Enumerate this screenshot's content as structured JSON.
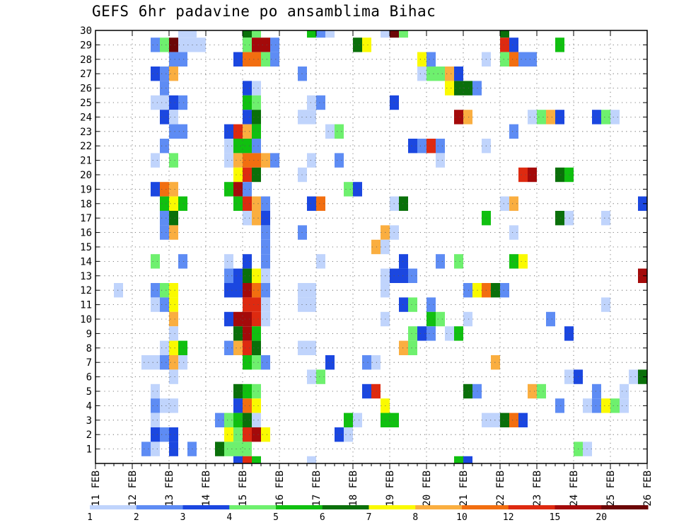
{
  "title": "GEFS 6hr padavine po ansamblima Bihac",
  "chart_data": {
    "type": "heatmap",
    "title": "GEFS 6hr padavine po ansamblima Bihac",
    "xlabel": "",
    "ylabel": "",
    "x_ticks": [
      "11 FEB",
      "12 FEB",
      "13 FEB",
      "14 FEB",
      "15 FEB",
      "16 FEB",
      "17 FEB",
      "18 FEB",
      "19 FEB",
      "20 FEB",
      "21 FEB",
      "22 FEB",
      "23 FEB",
      "24 FEB",
      "25 FEB",
      "26 FEB"
    ],
    "y_ticks": [
      "1",
      "2",
      "3",
      "4",
      "5",
      "6",
      "7",
      "8",
      "9",
      "10",
      "11",
      "12",
      "13",
      "14",
      "15",
      "16",
      "17",
      "18",
      "19",
      "20",
      "21",
      "22",
      "23",
      "24",
      "25",
      "26",
      "27",
      "28",
      "29",
      "30"
    ],
    "x_unit": "6-hour steps from 11 FEB 00Z",
    "x_range": [
      0,
      60
    ],
    "y_range": [
      0,
      30
    ],
    "grid": true,
    "colorbar": {
      "labels": [
        "1",
        "2",
        "3",
        "4",
        "5",
        "6",
        "7",
        "8",
        "10",
        "12",
        "15",
        "20"
      ],
      "colors": [
        "#c0d4fc",
        "#5e8cf4",
        "#1b47e0",
        "#6ef06e",
        "#10c010",
        "#0a700a",
        "#fafa00",
        "#faae40",
        "#f26e10",
        "#de2a10",
        "#a40a0a",
        "#6c0606"
      ]
    },
    "cells": [
      [
        30,
        9,
        0
      ],
      [
        30,
        10,
        0
      ],
      [
        30,
        16,
        5
      ],
      [
        30,
        17,
        3
      ],
      [
        30,
        23,
        4
      ],
      [
        30,
        24,
        1
      ],
      [
        30,
        25,
        0
      ],
      [
        30,
        31,
        0
      ],
      [
        30,
        32,
        11
      ],
      [
        30,
        33,
        3
      ],
      [
        30,
        44,
        5
      ],
      [
        29,
        6,
        1
      ],
      [
        29,
        7,
        3
      ],
      [
        29,
        8,
        11
      ],
      [
        29,
        9,
        0
      ],
      [
        29,
        10,
        0
      ],
      [
        29,
        11,
        0
      ],
      [
        29,
        16,
        3
      ],
      [
        29,
        17,
        10
      ],
      [
        29,
        18,
        10
      ],
      [
        29,
        19,
        1
      ],
      [
        29,
        28,
        5
      ],
      [
        29,
        29,
        6
      ],
      [
        29,
        44,
        9
      ],
      [
        29,
        45,
        2
      ],
      [
        29,
        50,
        4
      ],
      [
        28,
        8,
        1
      ],
      [
        28,
        9,
        1
      ],
      [
        28,
        15,
        2
      ],
      [
        28,
        16,
        8
      ],
      [
        28,
        17,
        8
      ],
      [
        28,
        18,
        3
      ],
      [
        28,
        19,
        1
      ],
      [
        28,
        35,
        6
      ],
      [
        28,
        36,
        1
      ],
      [
        28,
        42,
        0
      ],
      [
        28,
        44,
        3
      ],
      [
        28,
        45,
        8
      ],
      [
        28,
        46,
        1
      ],
      [
        28,
        47,
        1
      ],
      [
        27,
        6,
        2
      ],
      [
        27,
        7,
        1
      ],
      [
        27,
        8,
        7
      ],
      [
        27,
        22,
        1
      ],
      [
        27,
        35,
        0
      ],
      [
        27,
        36,
        3
      ],
      [
        27,
        37,
        3
      ],
      [
        27,
        38,
        7
      ],
      [
        27,
        39,
        2
      ],
      [
        26,
        7,
        1
      ],
      [
        26,
        16,
        2
      ],
      [
        26,
        17,
        0
      ],
      [
        26,
        38,
        6
      ],
      [
        26,
        39,
        5
      ],
      [
        26,
        40,
        5
      ],
      [
        26,
        41,
        1
      ],
      [
        25,
        6,
        0
      ],
      [
        25,
        7,
        0
      ],
      [
        25,
        8,
        2
      ],
      [
        25,
        9,
        1
      ],
      [
        25,
        16,
        4
      ],
      [
        25,
        17,
        3
      ],
      [
        25,
        23,
        0
      ],
      [
        25,
        24,
        1
      ],
      [
        25,
        32,
        2
      ],
      [
        24,
        7,
        2
      ],
      [
        24,
        8,
        0
      ],
      [
        24,
        16,
        2
      ],
      [
        24,
        17,
        5
      ],
      [
        24,
        22,
        0
      ],
      [
        24,
        23,
        0
      ],
      [
        24,
        39,
        10
      ],
      [
        24,
        40,
        7
      ],
      [
        24,
        47,
        0
      ],
      [
        24,
        48,
        3
      ],
      [
        24,
        49,
        7
      ],
      [
        24,
        50,
        2
      ],
      [
        24,
        54,
        2
      ],
      [
        24,
        55,
        3
      ],
      [
        24,
        56,
        0
      ],
      [
        23,
        8,
        1
      ],
      [
        23,
        9,
        1
      ],
      [
        23,
        14,
        2
      ],
      [
        23,
        15,
        9
      ],
      [
        23,
        16,
        7
      ],
      [
        23,
        17,
        4
      ],
      [
        23,
        25,
        0
      ],
      [
        23,
        26,
        3
      ],
      [
        23,
        45,
        1
      ],
      [
        22,
        7,
        1
      ],
      [
        22,
        14,
        0
      ],
      [
        22,
        15,
        4
      ],
      [
        22,
        16,
        4
      ],
      [
        22,
        17,
        1
      ],
      [
        22,
        34,
        2
      ],
      [
        22,
        35,
        1
      ],
      [
        22,
        36,
        9
      ],
      [
        22,
        37,
        1
      ],
      [
        22,
        42,
        0
      ],
      [
        21,
        6,
        0
      ],
      [
        21,
        8,
        3
      ],
      [
        21,
        14,
        0
      ],
      [
        21,
        15,
        7
      ],
      [
        21,
        16,
        8
      ],
      [
        21,
        17,
        8
      ],
      [
        21,
        18,
        7
      ],
      [
        21,
        19,
        1
      ],
      [
        21,
        23,
        0
      ],
      [
        21,
        26,
        1
      ],
      [
        21,
        37,
        0
      ],
      [
        20,
        15,
        6
      ],
      [
        20,
        16,
        9
      ],
      [
        20,
        17,
        5
      ],
      [
        20,
        22,
        0
      ],
      [
        20,
        46,
        9
      ],
      [
        20,
        47,
        10
      ],
      [
        20,
        50,
        5
      ],
      [
        20,
        51,
        4
      ],
      [
        19,
        6,
        2
      ],
      [
        19,
        7,
        8
      ],
      [
        19,
        8,
        7
      ],
      [
        19,
        14,
        4
      ],
      [
        19,
        15,
        10
      ],
      [
        19,
        16,
        1
      ],
      [
        19,
        27,
        3
      ],
      [
        19,
        28,
        2
      ],
      [
        18,
        7,
        4
      ],
      [
        18,
        8,
        6
      ],
      [
        18,
        9,
        4
      ],
      [
        18,
        15,
        4
      ],
      [
        18,
        16,
        9
      ],
      [
        18,
        17,
        7
      ],
      [
        18,
        18,
        1
      ],
      [
        18,
        23,
        2
      ],
      [
        18,
        24,
        8
      ],
      [
        18,
        32,
        0
      ],
      [
        18,
        33,
        5
      ],
      [
        18,
        44,
        0
      ],
      [
        18,
        45,
        7
      ],
      [
        18,
        59,
        2
      ],
      [
        17,
        7,
        1
      ],
      [
        17,
        8,
        5
      ],
      [
        17,
        16,
        0
      ],
      [
        17,
        17,
        7
      ],
      [
        17,
        18,
        2
      ],
      [
        17,
        42,
        4
      ],
      [
        17,
        50,
        5
      ],
      [
        17,
        51,
        0
      ],
      [
        17,
        55,
        0
      ],
      [
        17,
        60,
        0
      ],
      [
        16,
        7,
        1
      ],
      [
        16,
        8,
        7
      ],
      [
        16,
        18,
        1
      ],
      [
        16,
        22,
        1
      ],
      [
        16,
        31,
        7
      ],
      [
        16,
        32,
        0
      ],
      [
        16,
        45,
        0
      ],
      [
        15,
        18,
        1
      ],
      [
        15,
        30,
        7
      ],
      [
        15,
        31,
        0
      ],
      [
        14,
        6,
        3
      ],
      [
        14,
        9,
        1
      ],
      [
        14,
        14,
        0
      ],
      [
        14,
        16,
        2
      ],
      [
        14,
        18,
        1
      ],
      [
        14,
        24,
        0
      ],
      [
        14,
        33,
        2
      ],
      [
        14,
        37,
        1
      ],
      [
        14,
        39,
        3
      ],
      [
        14,
        45,
        4
      ],
      [
        14,
        46,
        6
      ],
      [
        13,
        14,
        1
      ],
      [
        13,
        15,
        2
      ],
      [
        13,
        16,
        5
      ],
      [
        13,
        17,
        6
      ],
      [
        13,
        18,
        0
      ],
      [
        13,
        31,
        0
      ],
      [
        13,
        32,
        2
      ],
      [
        13,
        33,
        2
      ],
      [
        13,
        34,
        1
      ],
      [
        13,
        59,
        10
      ],
      [
        12,
        2,
        0
      ],
      [
        12,
        6,
        1
      ],
      [
        12,
        7,
        3
      ],
      [
        12,
        8,
        6
      ],
      [
        12,
        14,
        2
      ],
      [
        12,
        15,
        2
      ],
      [
        12,
        16,
        10
      ],
      [
        12,
        17,
        8
      ],
      [
        12,
        18,
        1
      ],
      [
        12,
        22,
        0
      ],
      [
        12,
        23,
        0
      ],
      [
        12,
        31,
        0
      ],
      [
        12,
        40,
        1
      ],
      [
        12,
        41,
        6
      ],
      [
        12,
        42,
        8
      ],
      [
        12,
        43,
        5
      ],
      [
        12,
        44,
        1
      ],
      [
        11,
        6,
        0
      ],
      [
        11,
        7,
        1
      ],
      [
        11,
        8,
        6
      ],
      [
        11,
        16,
        9
      ],
      [
        11,
        17,
        9
      ],
      [
        11,
        18,
        0
      ],
      [
        11,
        22,
        0
      ],
      [
        11,
        23,
        0
      ],
      [
        11,
        33,
        2
      ],
      [
        11,
        34,
        3
      ],
      [
        11,
        36,
        1
      ],
      [
        11,
        55,
        0
      ],
      [
        10,
        8,
        7
      ],
      [
        10,
        14,
        2
      ],
      [
        10,
        15,
        10
      ],
      [
        10,
        16,
        10
      ],
      [
        10,
        17,
        9
      ],
      [
        10,
        18,
        0
      ],
      [
        10,
        31,
        0
      ],
      [
        10,
        36,
        4
      ],
      [
        10,
        37,
        3
      ],
      [
        10,
        40,
        0
      ],
      [
        10,
        49,
        1
      ],
      [
        9,
        8,
        0
      ],
      [
        9,
        15,
        5
      ],
      [
        9,
        16,
        10
      ],
      [
        9,
        17,
        4
      ],
      [
        9,
        34,
        3
      ],
      [
        9,
        35,
        2
      ],
      [
        9,
        36,
        1
      ],
      [
        9,
        38,
        0
      ],
      [
        9,
        39,
        4
      ],
      [
        9,
        51,
        2
      ],
      [
        8,
        7,
        0
      ],
      [
        8,
        8,
        6
      ],
      [
        8,
        9,
        4
      ],
      [
        8,
        14,
        1
      ],
      [
        8,
        15,
        7
      ],
      [
        8,
        16,
        9
      ],
      [
        8,
        17,
        5
      ],
      [
        8,
        22,
        0
      ],
      [
        8,
        23,
        0
      ],
      [
        8,
        33,
        7
      ],
      [
        8,
        34,
        3
      ],
      [
        7,
        5,
        0
      ],
      [
        7,
        6,
        0
      ],
      [
        7,
        7,
        1
      ],
      [
        7,
        8,
        7
      ],
      [
        7,
        9,
        0
      ],
      [
        7,
        16,
        4
      ],
      [
        7,
        17,
        3
      ],
      [
        7,
        18,
        1
      ],
      [
        7,
        25,
        2
      ],
      [
        7,
        29,
        1
      ],
      [
        7,
        30,
        0
      ],
      [
        7,
        43,
        7
      ],
      [
        6,
        8,
        0
      ],
      [
        6,
        23,
        0
      ],
      [
        6,
        24,
        3
      ],
      [
        6,
        51,
        0
      ],
      [
        6,
        52,
        2
      ],
      [
        6,
        58,
        0
      ],
      [
        6,
        59,
        5
      ],
      [
        5,
        6,
        0
      ],
      [
        5,
        15,
        5
      ],
      [
        5,
        16,
        4
      ],
      [
        5,
        17,
        3
      ],
      [
        5,
        29,
        2
      ],
      [
        5,
        30,
        9
      ],
      [
        5,
        40,
        5
      ],
      [
        5,
        41,
        1
      ],
      [
        5,
        47,
        7
      ],
      [
        5,
        48,
        3
      ],
      [
        5,
        54,
        1
      ],
      [
        5,
        57,
        0
      ],
      [
        4,
        6,
        1
      ],
      [
        4,
        7,
        0
      ],
      [
        4,
        8,
        0
      ],
      [
        4,
        15,
        2
      ],
      [
        4,
        16,
        8
      ],
      [
        4,
        17,
        6
      ],
      [
        4,
        31,
        6
      ],
      [
        4,
        50,
        1
      ],
      [
        4,
        53,
        0
      ],
      [
        4,
        54,
        1
      ],
      [
        4,
        55,
        6
      ],
      [
        4,
        56,
        3
      ],
      [
        4,
        57,
        0
      ],
      [
        3,
        6,
        0
      ],
      [
        3,
        13,
        1
      ],
      [
        3,
        14,
        3
      ],
      [
        3,
        15,
        4
      ],
      [
        3,
        16,
        5
      ],
      [
        3,
        17,
        0
      ],
      [
        3,
        27,
        4
      ],
      [
        3,
        28,
        0
      ],
      [
        3,
        31,
        4
      ],
      [
        3,
        32,
        4
      ],
      [
        3,
        42,
        0
      ],
      [
        3,
        43,
        0
      ],
      [
        3,
        44,
        5
      ],
      [
        3,
        45,
        8
      ],
      [
        3,
        46,
        2
      ],
      [
        2,
        6,
        2
      ],
      [
        2,
        7,
        1
      ],
      [
        2,
        8,
        2
      ],
      [
        2,
        14,
        6
      ],
      [
        2,
        15,
        3
      ],
      [
        2,
        16,
        9
      ],
      [
        2,
        17,
        10
      ],
      [
        2,
        18,
        6
      ],
      [
        2,
        26,
        2
      ],
      [
        2,
        27,
        0
      ],
      [
        1,
        5,
        1
      ],
      [
        1,
        6,
        0
      ],
      [
        1,
        8,
        2
      ],
      [
        1,
        10,
        1
      ],
      [
        1,
        13,
        5
      ],
      [
        1,
        14,
        3
      ],
      [
        1,
        15,
        3
      ],
      [
        1,
        16,
        3
      ],
      [
        1,
        52,
        3
      ],
      [
        1,
        53,
        0
      ],
      [
        0,
        15,
        2
      ],
      [
        0,
        16,
        9
      ],
      [
        0,
        17,
        4
      ],
      [
        0,
        23,
        0
      ],
      [
        0,
        39,
        4
      ],
      [
        0,
        40,
        2
      ]
    ]
  }
}
